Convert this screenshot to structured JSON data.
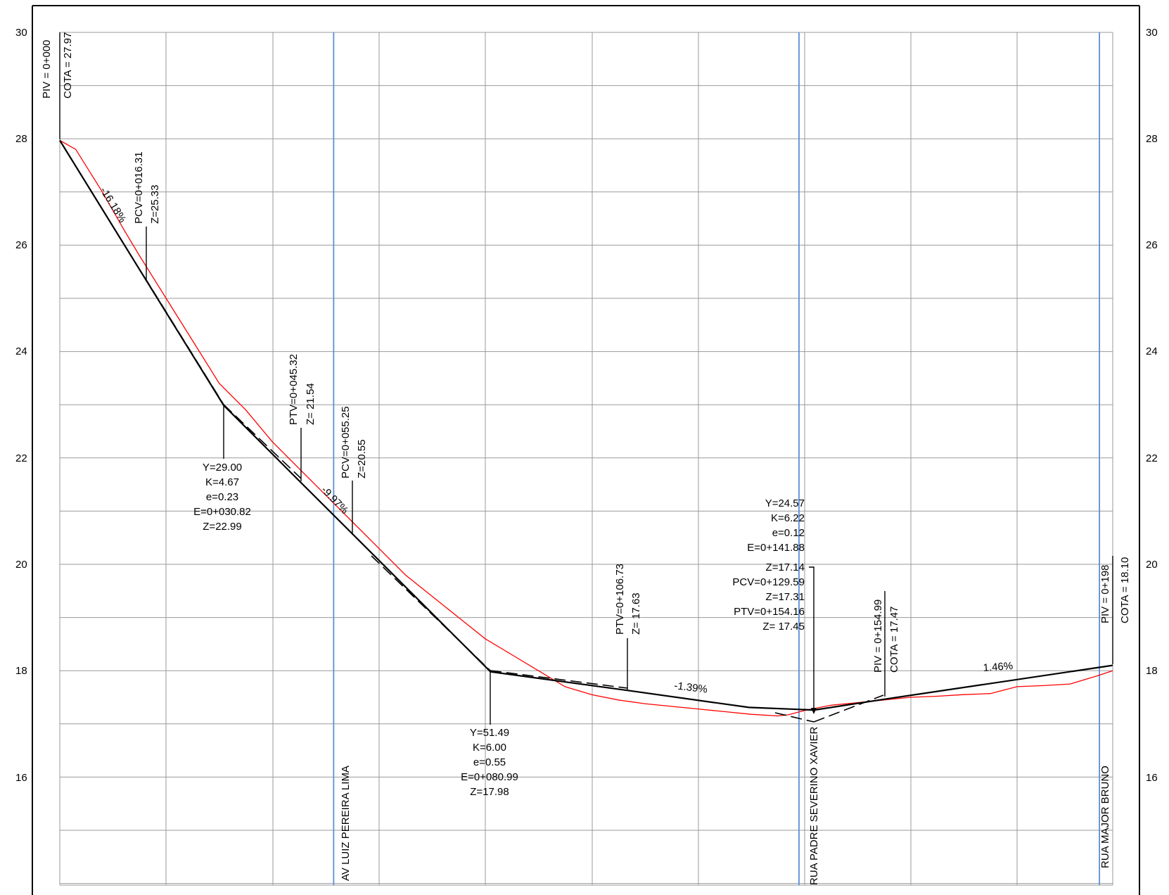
{
  "y_axis_ticks": [
    "30",
    "28",
    "26",
    "24",
    "22",
    "20",
    "18",
    "16"
  ],
  "streets": [
    "AV LUIZ PEREIRA LIMA",
    "RUA PADRE SEVERINO XAVIER",
    "RUA MAJOR BRUNO"
  ],
  "slopes": [
    "-16.18%",
    "-9.97%",
    "-1.39%",
    "1.46%"
  ],
  "stations": {
    "piv_start": [
      "PIV = 0+000",
      "COTA =  27.97"
    ],
    "pcv_1": [
      "PCV=0+016.31",
      "Z=25.33"
    ],
    "ptv_1": [
      "PTV=0+045.32",
      "Z= 21.54"
    ],
    "pcv_2": [
      "PCV=0+055.25",
      "Z=20.55"
    ],
    "ptv_2": [
      "PTV=0+106.73",
      "Z= 17.63"
    ],
    "piv_mid": [
      "PIV = 0+154.99",
      "COTA =  17.47"
    ],
    "piv_end": [
      "PIV = 0+198",
      "COTA =  18.10"
    ]
  },
  "curve_blocks": {
    "curve_1": [
      "Y=29.00",
      "K=4.67",
      "e=0.23",
      "E=0+030.82",
      "Z=22.99"
    ],
    "curve_2": [
      "Y=51.49",
      "K=6.00",
      "e=0.55",
      "E=0+080.99",
      "Z=17.98"
    ],
    "curve_3": [
      "Y=24.57",
      "K=6.22",
      "e=0.12",
      "E=0+141.88",
      "Z=17.14",
      "PCV=0+129.59",
      "Z=17.31",
      "PTV=0+154.16",
      "Z= 17.45"
    ]
  },
  "colors": {
    "design_profile": "#000000",
    "terrain_profile": "#ff0000",
    "street_marker": "#5b8fd6",
    "grid": "#9a9a9a"
  },
  "chart_data": {
    "type": "line",
    "title": "",
    "xlabel": "",
    "ylabel": "",
    "ylim": [
      14,
      30
    ],
    "xlim": [
      0,
      198
    ],
    "y_ticks": [
      30,
      28,
      26,
      24,
      22,
      20,
      18,
      16
    ],
    "grid": true,
    "series": [
      {
        "x": [
          0,
          16.31,
          30.82,
          45.32,
          55.25,
          80.99,
          106.73,
          129.59,
          141.88,
          154.16,
          198
        ],
        "y": [
          27.97,
          25.33,
          22.99,
          21.54,
          20.55,
          17.98,
          17.63,
          17.31,
          17.26,
          17.45,
          18.1
        ]
      },
      {
        "x": [
          0,
          3,
          8,
          12,
          15,
          20,
          25,
          30,
          35,
          40,
          45,
          50,
          55,
          60,
          65,
          70,
          75,
          80,
          85,
          90,
          95,
          100,
          105,
          110,
          115,
          120,
          125,
          130,
          135,
          137,
          140,
          145,
          150,
          155,
          160,
          165,
          170,
          175,
          180,
          185,
          190,
          195,
          198
        ],
        "y": [
          27.97,
          27.8,
          27.0,
          26.3,
          25.8,
          25.0,
          24.2,
          23.4,
          22.9,
          22.3,
          21.8,
          21.3,
          20.8,
          20.3,
          19.8,
          19.4,
          19.0,
          18.6,
          18.3,
          18.0,
          17.7,
          17.55,
          17.45,
          17.38,
          17.33,
          17.28,
          17.23,
          17.18,
          17.15,
          17.17,
          17.25,
          17.35,
          17.4,
          17.45,
          17.5,
          17.52,
          17.55,
          17.57,
          17.7,
          17.72,
          17.75,
          17.9,
          18.0
        ]
      }
    ],
    "street_stations": [
      51.5,
      139.0,
      195.5
    ]
  }
}
